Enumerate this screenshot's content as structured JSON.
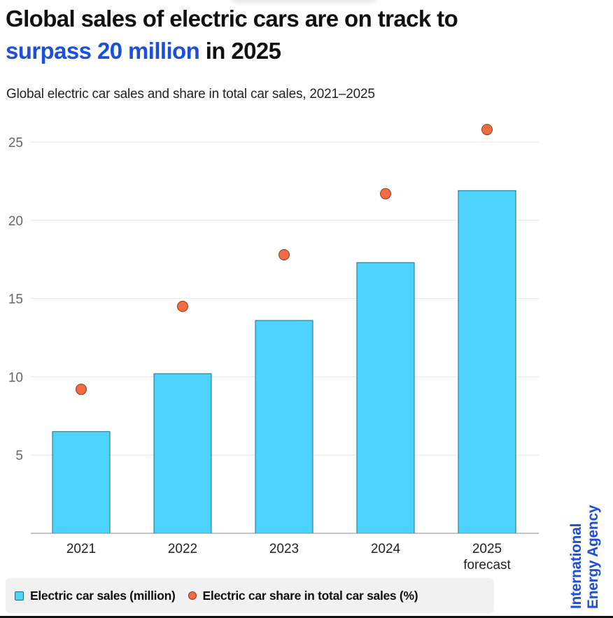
{
  "header": {
    "title_line1": "Global sales of electric cars are on track to",
    "title_highlight": "surpass 20 million",
    "title_rest": " in 2025",
    "subtitle": "Global electric car sales and share in total car sales, 2021–2025"
  },
  "colors": {
    "bar_fill": "#4dd2fc",
    "bar_stroke": "#1e6f86",
    "dot_fill": "#f26b43",
    "dot_stroke": "#8a3a1f",
    "highlight": "#1a4fe0",
    "gridline": "#e6e6e6"
  },
  "legend": {
    "items": [
      {
        "label": "Electric car sales (million)",
        "marker": "square"
      },
      {
        "label": "Electric car share in total car sales (%)",
        "marker": "circle"
      }
    ]
  },
  "logo": {
    "line1": "International",
    "line2": "Energy Agency"
  },
  "chart_data": {
    "type": "bar",
    "title": "Global electric car sales and share in total car sales, 2021–2025",
    "categories": [
      "2021",
      "2022",
      "2023",
      "2024",
      "2025"
    ],
    "category_sublabels": [
      "",
      "",
      "",
      "",
      "forecast"
    ],
    "xlabel": "",
    "ylabel": "",
    "ylim": [
      0,
      25
    ],
    "yticks": [
      5,
      10,
      15,
      20,
      25
    ],
    "grid": true,
    "legend_position": "bottom",
    "series": [
      {
        "name": "Electric car sales (million)",
        "type": "bar",
        "values": [
          6.5,
          10.2,
          13.6,
          17.3,
          21.9
        ]
      },
      {
        "name": "Electric car share in total car sales (%)",
        "type": "scatter",
        "values": [
          9.2,
          14.5,
          17.8,
          21.7,
          25.8
        ]
      }
    ]
  }
}
